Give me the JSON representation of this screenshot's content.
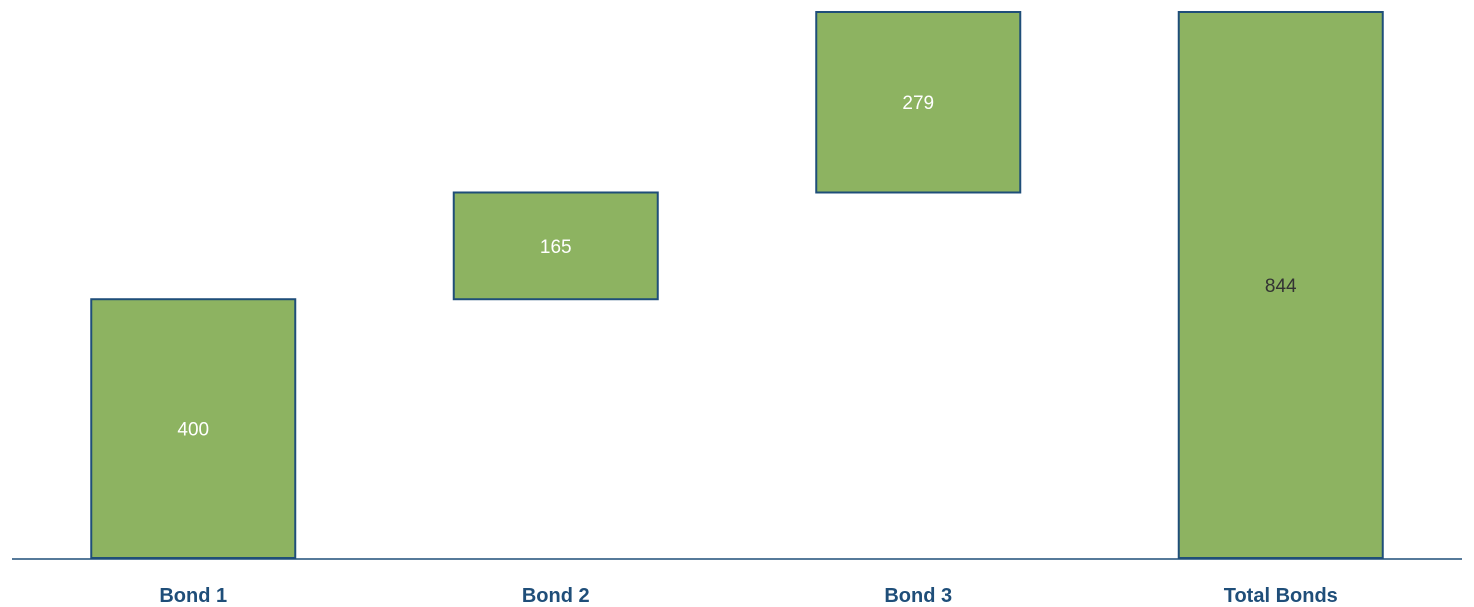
{
  "chart_data": {
    "type": "bar",
    "subtype": "waterfall",
    "categories": [
      "Bond 1",
      "Bond 2",
      "Bond 3",
      "Total Bonds"
    ],
    "values": [
      400,
      165,
      279,
      844
    ],
    "kinds": [
      "increment",
      "increment",
      "increment",
      "total"
    ],
    "data_labels": [
      "400",
      "165",
      "279",
      "844"
    ],
    "ylim": [
      0,
      844
    ],
    "grid": false,
    "colors": {
      "bar_fill": "#8DB361",
      "bar_stroke": "#1F4E79",
      "axis": "#1F4E79",
      "category_text": "#1F4E79",
      "label_light": "#FFFFFF",
      "label_dark": "#333333"
    },
    "label_colors": [
      "light",
      "light",
      "light",
      "dark"
    ]
  }
}
